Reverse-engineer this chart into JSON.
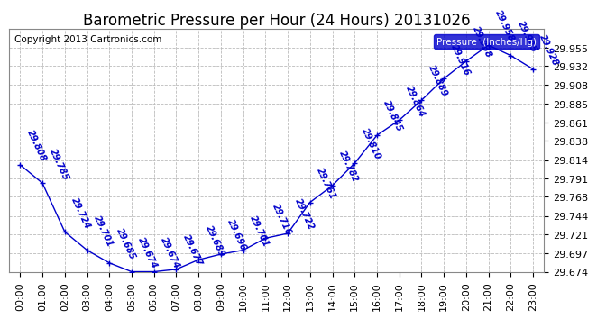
{
  "title": "Barometric Pressure per Hour (24 Hours) 20131026",
  "copyright": "Copyright 2013 Cartronics.com",
  "legend_label": "Pressure  (Inches/Hg)",
  "hours": [
    "00:00",
    "01:00",
    "02:00",
    "03:00",
    "04:00",
    "05:00",
    "06:00",
    "07:00",
    "08:00",
    "09:00",
    "10:00",
    "11:00",
    "12:00",
    "13:00",
    "14:00",
    "15:00",
    "16:00",
    "17:00",
    "18:00",
    "19:00",
    "20:00",
    "21:00",
    "22:00",
    "23:00"
  ],
  "values": [
    29.808,
    29.785,
    29.724,
    29.701,
    29.685,
    29.674,
    29.674,
    29.677,
    29.689,
    29.696,
    29.701,
    29.716,
    29.722,
    29.761,
    29.782,
    29.81,
    29.845,
    29.864,
    29.889,
    29.916,
    29.938,
    29.958,
    29.945,
    29.928
  ],
  "ylim_min": 29.674,
  "ylim_max": 29.978,
  "yticks": [
    29.674,
    29.697,
    29.721,
    29.744,
    29.768,
    29.791,
    29.814,
    29.838,
    29.861,
    29.885,
    29.908,
    29.932,
    29.955
  ],
  "line_color": "#0000cc",
  "marker_color": "#0000cc",
  "bg_color": "#ffffff",
  "grid_color": "#bbbbbb",
  "title_color": "#000000",
  "copyright_color": "#000000",
  "legend_bg": "#0000cc",
  "legend_text_color": "#ffffff",
  "annotation_color": "#0000cc",
  "title_fontsize": 12,
  "annotation_fontsize": 7,
  "tick_fontsize": 8,
  "copyright_fontsize": 7.5
}
